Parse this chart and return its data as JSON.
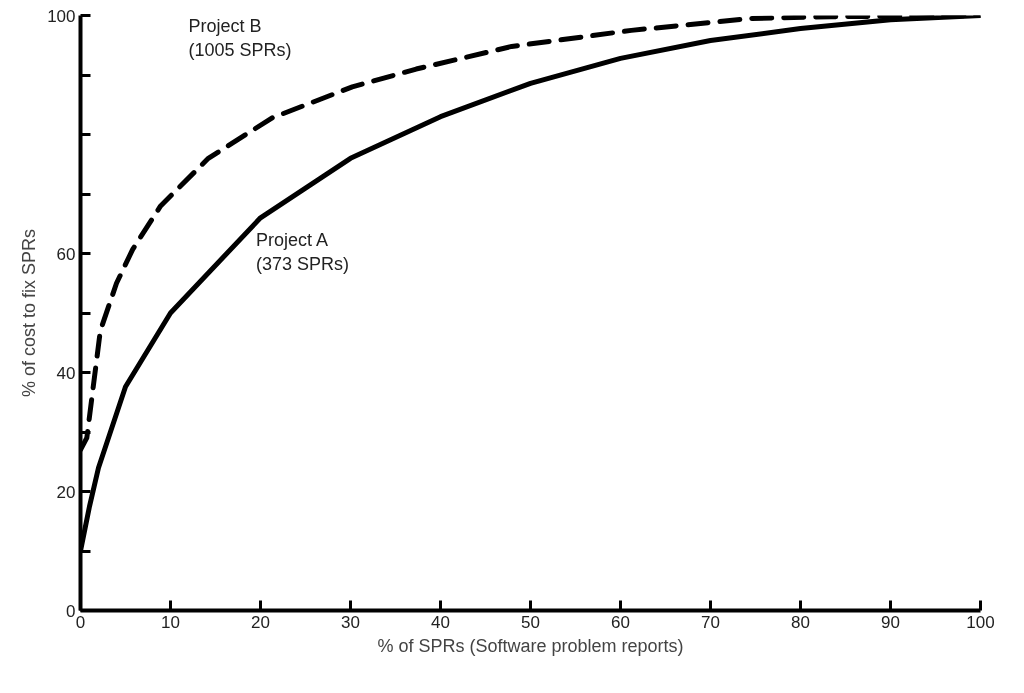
{
  "chart_data": {
    "type": "line",
    "xlabel": "% of SPRs (Software problem reports)",
    "ylabel": "% of cost to fix SPRs",
    "xlim": [
      0,
      100
    ],
    "ylim": [
      0,
      100
    ],
    "xticks": [
      0,
      10,
      20,
      30,
      40,
      50,
      60,
      70,
      80,
      90,
      100
    ],
    "yticks": [
      0,
      {
        "value": 10,
        "label": null
      },
      20,
      {
        "value": 30,
        "label": null
      },
      40,
      {
        "value": 50,
        "label": null
      },
      60,
      {
        "value": 70,
        "label": null
      },
      {
        "value": 80,
        "label": null
      },
      {
        "value": 90,
        "label": null
      },
      100
    ],
    "grid": false,
    "marker": "none",
    "series": [
      {
        "name": "Project B\n(1005 SPRs)",
        "color": "#000000",
        "line_style": "dashed",
        "x": [
          0,
          0.7,
          2.2,
          4,
          5.8,
          8.9,
          14.2,
          21.3,
          30.2,
          37.3,
          47.9,
          61.2,
          74.5,
          83.4,
          100
        ],
        "values": [
          27,
          29,
          47,
          55,
          60.7,
          68,
          76,
          82.8,
          88,
          91,
          94.8,
          97.5,
          99.5,
          99.8,
          100
        ]
      },
      {
        "name": "Project A\n(373 SPRs)",
        "color": "#000000",
        "line_style": "solid",
        "x": [
          0,
          1,
          2,
          5,
          10,
          20,
          30,
          40,
          50,
          60,
          70,
          80,
          90,
          100
        ],
        "values": [
          10,
          17.5,
          24,
          37.6,
          50,
          66,
          76,
          83,
          88.6,
          92.8,
          95.8,
          97.8,
          99.3,
          100
        ]
      }
    ]
  }
}
